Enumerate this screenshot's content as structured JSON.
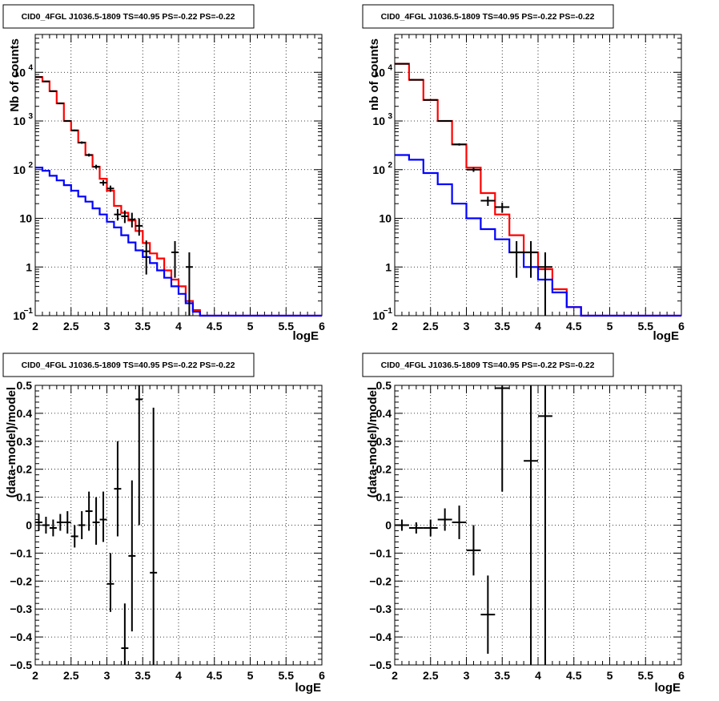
{
  "canvas": {
    "background": "#ffffff",
    "data_color": "#000000",
    "total_color": "#ff0000",
    "background_model_color": "#0000ff"
  },
  "chart_data": [
    {
      "type": "line",
      "title": "CID0_4FGL J1036.5-1809 TS=40.95 PS=-0.22 PS=-0.22",
      "xlabel": "logE",
      "ylabel": "Nb of counts",
      "xlim": [
        2,
        6
      ],
      "ylim": [
        0.1,
        60000
      ],
      "yscale": "log",
      "grid": true,
      "xticks": [
        "2",
        "2.5",
        "3",
        "3.5",
        "4",
        "4.5",
        "5",
        "5.5",
        "6"
      ],
      "yticks": [
        {
          "value": 0.1,
          "label": "10",
          "exp": "−1"
        },
        {
          "value": 1,
          "label": "1",
          "exp": ""
        },
        {
          "value": 10,
          "label": "10",
          "exp": ""
        },
        {
          "value": 100,
          "label": "10",
          "exp": "2"
        },
        {
          "value": 1000,
          "label": "10",
          "exp": "3"
        },
        {
          "value": 10000,
          "label": "10",
          "exp": "4"
        }
      ],
      "bin_edges": [
        2.0,
        2.1,
        2.2,
        2.3,
        2.4,
        2.5,
        2.6,
        2.7,
        2.8,
        2.9,
        3.0,
        3.1,
        3.2,
        3.3,
        3.4,
        3.5,
        3.6,
        3.7,
        3.8,
        3.9,
        4.0,
        4.1,
        4.2,
        4.3,
        4.4,
        4.5,
        4.6,
        4.7,
        4.8,
        4.9,
        5.0,
        5.1,
        5.2,
        5.3,
        5.4,
        5.5,
        5.6,
        5.7,
        5.8,
        5.9,
        6.0
      ],
      "series": [
        {
          "color": "#ff0000",
          "kind": "step",
          "values": [
            8000,
            6500,
            4100,
            2300,
            1000,
            640,
            360,
            200,
            115,
            65,
            37,
            18,
            13,
            9,
            5.5,
            3.1,
            1.9,
            1.5,
            0.85,
            0.55,
            0.4,
            0.2,
            0.13,
            0.1,
            0.1,
            0.1,
            0.1,
            0.1,
            0.1,
            0.1,
            0.1,
            0.1,
            0.1,
            0.1,
            0.1,
            0.1,
            0.1,
            0.1,
            0.1,
            0.1
          ]
        },
        {
          "color": "#0000ff",
          "kind": "step",
          "values": [
            110,
            95,
            75,
            60,
            48,
            37,
            28,
            22,
            16,
            12,
            8.5,
            6.5,
            4.5,
            3.2,
            2.2,
            1.6,
            1.2,
            0.85,
            0.6,
            0.4,
            0.28,
            0.18,
            0.12,
            0.1,
            0.1,
            0.1,
            0.1,
            0.1,
            0.1,
            0.1,
            0.1,
            0.1,
            0.1,
            0.1,
            0.1,
            0.1,
            0.1,
            0.1,
            0.1,
            0.1
          ]
        },
        {
          "color": "#000000",
          "kind": "points",
          "points": [
            {
              "x": 2.05,
              "y": 8000,
              "lo": 7900,
              "hi": 8100
            },
            {
              "x": 2.15,
              "y": 6500,
              "lo": 6400,
              "hi": 6600
            },
            {
              "x": 2.25,
              "y": 4100,
              "lo": 4000,
              "hi": 4200
            },
            {
              "x": 2.35,
              "y": 2300,
              "lo": 2250,
              "hi": 2350
            },
            {
              "x": 2.45,
              "y": 1000,
              "lo": 970,
              "hi": 1030
            },
            {
              "x": 2.55,
              "y": 640,
              "lo": 615,
              "hi": 665
            },
            {
              "x": 2.65,
              "y": 360,
              "lo": 340,
              "hi": 380
            },
            {
              "x": 2.75,
              "y": 200,
              "lo": 186,
              "hi": 214
            },
            {
              "x": 2.85,
              "y": 115,
              "lo": 104,
              "hi": 126
            },
            {
              "x": 2.95,
              "y": 54,
              "lo": 47,
              "hi": 61
            },
            {
              "x": 3.05,
              "y": 41,
              "lo": 35,
              "hi": 47
            },
            {
              "x": 3.15,
              "y": 12,
              "lo": 9,
              "hi": 15.5
            },
            {
              "x": 3.25,
              "y": 11,
              "lo": 8,
              "hi": 14.5
            },
            {
              "x": 3.35,
              "y": 9.5,
              "lo": 6.5,
              "hi": 13
            },
            {
              "x": 3.45,
              "y": 7,
              "lo": 4.4,
              "hi": 10
            },
            {
              "x": 3.55,
              "y": 2.1,
              "lo": 0.7,
              "hi": 3.5
            },
            {
              "x": 3.95,
              "y": 2,
              "lo": 0.6,
              "hi": 3.4
            },
            {
              "x": 4.15,
              "y": 1,
              "lo": 0.1,
              "hi": 2
            }
          ]
        }
      ]
    },
    {
      "type": "line",
      "title": "CID0_4FGL J1036.5-1809 TS=40.95 PS=-0.22 PS=-0.22",
      "xlabel": "logE",
      "ylabel": "nb of counts",
      "xlim": [
        2,
        6
      ],
      "ylim": [
        0.1,
        60000
      ],
      "yscale": "log",
      "grid": true,
      "xticks": [
        "2",
        "2.5",
        "3",
        "3.5",
        "4",
        "4.5",
        "5",
        "5.5",
        "6"
      ],
      "yticks": [
        {
          "value": 0.1,
          "label": "10",
          "exp": "−1"
        },
        {
          "value": 1,
          "label": "1",
          "exp": ""
        },
        {
          "value": 10,
          "label": "10",
          "exp": ""
        },
        {
          "value": 100,
          "label": "10",
          "exp": "2"
        },
        {
          "value": 1000,
          "label": "10",
          "exp": "3"
        },
        {
          "value": 10000,
          "label": "10",
          "exp": "4"
        }
      ],
      "bin_edges": [
        2.0,
        2.2,
        2.4,
        2.6,
        2.8,
        3.0,
        3.2,
        3.4,
        3.6,
        3.8,
        4.0,
        4.2,
        4.4,
        4.6,
        4.8,
        5.0,
        5.2,
        5.4,
        5.6,
        5.8,
        6.0
      ],
      "series": [
        {
          "color": "#ff0000",
          "kind": "step",
          "values": [
            15000,
            7000,
            2700,
            1000,
            330,
            110,
            33,
            12,
            4.5,
            2,
            0.9,
            0.35,
            0.15,
            0.1,
            0.1,
            0.1,
            0.1,
            0.1,
            0.1,
            0.1
          ]
        },
        {
          "color": "#0000ff",
          "kind": "step",
          "values": [
            200,
            160,
            85,
            50,
            20,
            10,
            6,
            3.7,
            2,
            1,
            0.55,
            0.3,
            0.15,
            0.1,
            0.1,
            0.1,
            0.1,
            0.1,
            0.1,
            0.1
          ]
        },
        {
          "color": "#000000",
          "kind": "points",
          "points": [
            {
              "x": 2.1,
              "y": 15000,
              "lo": 14850,
              "hi": 15150
            },
            {
              "x": 2.3,
              "y": 7000,
              "lo": 6900,
              "hi": 7100
            },
            {
              "x": 2.5,
              "y": 2700,
              "lo": 2650,
              "hi": 2750
            },
            {
              "x": 2.7,
              "y": 1000,
              "lo": 970,
              "hi": 1030
            },
            {
              "x": 2.9,
              "y": 330,
              "lo": 312,
              "hi": 348
            },
            {
              "x": 3.1,
              "y": 100,
              "lo": 90,
              "hi": 110
            },
            {
              "x": 3.3,
              "y": 23,
              "lo": 18,
              "hi": 28
            },
            {
              "x": 3.5,
              "y": 17,
              "lo": 13,
              "hi": 21
            },
            {
              "x": 3.7,
              "y": 2,
              "lo": 0.6,
              "hi": 3.4
            },
            {
              "x": 3.9,
              "y": 2,
              "lo": 0.6,
              "hi": 3.4
            },
            {
              "x": 4.1,
              "y": 1,
              "lo": 0.1,
              "hi": 2
            }
          ]
        }
      ]
    },
    {
      "type": "scatter",
      "title": "CID0_4FGL J1036.5-1809 TS=40.95 PS=-0.22 PS=-0.22",
      "xlabel": "logE",
      "ylabel": "(data-model)/model",
      "xlim": [
        2,
        6
      ],
      "ylim": [
        -0.5,
        0.5
      ],
      "grid": true,
      "xticks": [
        "2",
        "2.5",
        "3",
        "3.5",
        "4",
        "4.5",
        "5",
        "5.5",
        "6"
      ],
      "yticks": [
        "−0.5",
        "−0.4",
        "−0.3",
        "−0.2",
        "−0.1",
        "0",
        "0.1",
        "0.2",
        "0.3",
        "0.4",
        "0.5"
      ],
      "xerr": 0.05,
      "points": [
        {
          "x": 2.05,
          "y": 0.01,
          "lo": -0.02,
          "hi": 0.04
        },
        {
          "x": 2.15,
          "y": 0.0,
          "lo": -0.03,
          "hi": 0.03
        },
        {
          "x": 2.25,
          "y": -0.01,
          "lo": -0.04,
          "hi": 0.02
        },
        {
          "x": 2.35,
          "y": 0.01,
          "lo": -0.02,
          "hi": 0.04
        },
        {
          "x": 2.45,
          "y": 0.01,
          "lo": -0.03,
          "hi": 0.05
        },
        {
          "x": 2.55,
          "y": -0.04,
          "lo": -0.08,
          "hi": 0.0
        },
        {
          "x": 2.65,
          "y": 0.0,
          "lo": -0.05,
          "hi": 0.05
        },
        {
          "x": 2.75,
          "y": 0.05,
          "lo": -0.02,
          "hi": 0.12
        },
        {
          "x": 2.85,
          "y": 0.01,
          "lo": -0.07,
          "hi": 0.1
        },
        {
          "x": 2.95,
          "y": 0.02,
          "lo": -0.06,
          "hi": 0.12
        },
        {
          "x": 3.05,
          "y": -0.21,
          "lo": -0.31,
          "hi": -0.1
        },
        {
          "x": 3.15,
          "y": 0.13,
          "lo": -0.04,
          "hi": 0.3
        },
        {
          "x": 3.25,
          "y": -0.44,
          "lo": -0.5,
          "hi": -0.28
        },
        {
          "x": 3.35,
          "y": -0.11,
          "lo": -0.38,
          "hi": 0.16
        },
        {
          "x": 3.45,
          "y": 0.45,
          "lo": 0.0,
          "hi": 0.5
        },
        {
          "x": 3.65,
          "y": -0.17,
          "lo": -0.5,
          "hi": 0.42
        }
      ]
    },
    {
      "type": "scatter",
      "title": "CID0_4FGL J1036.5-1809 TS=40.95 PS=-0.22 PS=-0.22",
      "xlabel": "logE",
      "ylabel": "(data-model)/model",
      "xlim": [
        2,
        6
      ],
      "ylim": [
        -0.5,
        0.5
      ],
      "grid": true,
      "xticks": [
        "2",
        "2.5",
        "3",
        "3.5",
        "4",
        "4.5",
        "5",
        "5.5",
        "6"
      ],
      "yticks": [
        "−0.5",
        "−0.4",
        "−0.3",
        "−0.2",
        "−0.1",
        "0",
        "0.1",
        "0.2",
        "0.3",
        "0.4",
        "0.5"
      ],
      "xerr": 0.1,
      "points": [
        {
          "x": 2.1,
          "y": 0.0,
          "lo": -0.02,
          "hi": 0.02
        },
        {
          "x": 2.3,
          "y": -0.01,
          "lo": -0.03,
          "hi": 0.01
        },
        {
          "x": 2.5,
          "y": -0.01,
          "lo": -0.04,
          "hi": 0.02
        },
        {
          "x": 2.7,
          "y": 0.02,
          "lo": -0.02,
          "hi": 0.06
        },
        {
          "x": 2.9,
          "y": 0.01,
          "lo": -0.05,
          "hi": 0.07
        },
        {
          "x": 3.1,
          "y": -0.09,
          "lo": -0.18,
          "hi": 0.0
        },
        {
          "x": 3.3,
          "y": -0.32,
          "lo": -0.46,
          "hi": -0.18
        },
        {
          "x": 3.5,
          "y": 0.49,
          "lo": 0.12,
          "hi": 0.5
        },
        {
          "x": 3.9,
          "y": 0.23,
          "lo": -0.5,
          "hi": 0.5
        },
        {
          "x": 4.1,
          "y": 0.39,
          "lo": -0.5,
          "hi": 0.5
        }
      ]
    }
  ]
}
